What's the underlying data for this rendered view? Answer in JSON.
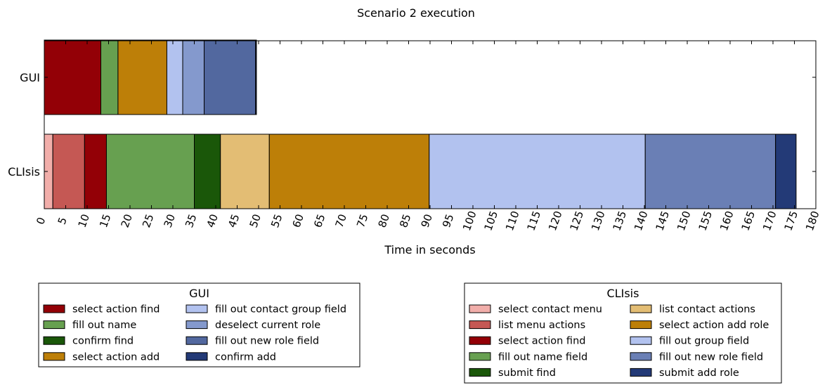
{
  "chart_data": {
    "type": "bar",
    "orientation": "horizontal-stacked-timeline",
    "title": "Scenario 2 execution",
    "xlabel": "Time in seconds",
    "ylabel": "",
    "xlim": [
      0,
      180
    ],
    "xticks": [
      0,
      5,
      10,
      15,
      20,
      25,
      30,
      35,
      40,
      45,
      50,
      55,
      60,
      65,
      70,
      75,
      80,
      85,
      90,
      95,
      100,
      105,
      110,
      115,
      120,
      125,
      130,
      135,
      140,
      145,
      150,
      155,
      160,
      165,
      170,
      175,
      180
    ],
    "grid": false,
    "categories": [
      "GUI",
      "CLIsis"
    ],
    "rows": [
      {
        "name": "GUI",
        "segments": [
          {
            "label": "select action find",
            "start": 0,
            "end": 13.2,
            "color": "#930006"
          },
          {
            "label": "fill out name",
            "start": 13.2,
            "end": 17.2,
            "color": "#67a050"
          },
          {
            "label": "select action add",
            "start": 17.2,
            "end": 28.6,
            "color": "#bd7f08"
          },
          {
            "label": "fill out contact group field",
            "start": 28.6,
            "end": 32.3,
            "color": "#b2c2ef"
          },
          {
            "label": "deselect current role",
            "start": 32.3,
            "end": 37.3,
            "color": "#8499cd"
          },
          {
            "label": "fill out new role field",
            "start": 37.3,
            "end": 49.3,
            "color": "#52689f"
          },
          {
            "label": "confirm add",
            "start": 49.3,
            "end": 49.5,
            "color": "#233a77"
          }
        ]
      },
      {
        "name": "CLIsis",
        "segments": [
          {
            "label": "select contact menu",
            "start": 0,
            "end": 2.0,
            "color": "#f1aeaa"
          },
          {
            "label": "list menu actions",
            "start": 2.0,
            "end": 9.4,
            "color": "#c55854"
          },
          {
            "label": "select action find",
            "start": 9.4,
            "end": 14.5,
            "color": "#930006"
          },
          {
            "label": "fill out name field",
            "start": 14.5,
            "end": 35.0,
            "color": "#67a050"
          },
          {
            "label": "submit find",
            "start": 35.0,
            "end": 41.1,
            "color": "#1a5709"
          },
          {
            "label": "list contact actions",
            "start": 41.1,
            "end": 52.5,
            "color": "#e3bd74"
          },
          {
            "label": "select action add role",
            "start": 52.5,
            "end": 89.8,
            "color": "#bd7f08"
          },
          {
            "label": "fill out group field",
            "start": 89.8,
            "end": 140.2,
            "color": "#b2c2ef"
          },
          {
            "label": "fill out new role field",
            "start": 140.2,
            "end": 170.6,
            "color": "#6a7fb5"
          },
          {
            "label": "submit add role",
            "start": 170.6,
            "end": 175.4,
            "color": "#233a77"
          }
        ]
      }
    ],
    "legends": [
      {
        "title": "GUI",
        "placement": "bottom-left",
        "entries": [
          {
            "label": "select action find",
            "color": "#930006"
          },
          {
            "label": "fill out name",
            "color": "#67a050"
          },
          {
            "label": "confirm find",
            "color": "#1a5709"
          },
          {
            "label": "select action add",
            "color": "#bd7f08"
          },
          {
            "label": "fill out contact group field",
            "color": "#b2c2ef"
          },
          {
            "label": "deselect current role",
            "color": "#8499cd"
          },
          {
            "label": "fill out new role field",
            "color": "#52689f"
          },
          {
            "label": "confirm add",
            "color": "#233a77"
          }
        ]
      },
      {
        "title": "CLIsis",
        "placement": "bottom-right",
        "entries": [
          {
            "label": "select contact menu",
            "color": "#f1aeaa"
          },
          {
            "label": "list menu actions",
            "color": "#c55854"
          },
          {
            "label": "select action find",
            "color": "#930006"
          },
          {
            "label": "fill out name field",
            "color": "#67a050"
          },
          {
            "label": "submit find",
            "color": "#1a5709"
          },
          {
            "label": "list contact actions",
            "color": "#e3bd74"
          },
          {
            "label": "select action add role",
            "color": "#bd7f08"
          },
          {
            "label": "fill out group field",
            "color": "#b2c2ef"
          },
          {
            "label": "fill out new role field",
            "color": "#6a7fb5"
          },
          {
            "label": "submit add role",
            "color": "#233a77"
          }
        ]
      }
    ]
  }
}
